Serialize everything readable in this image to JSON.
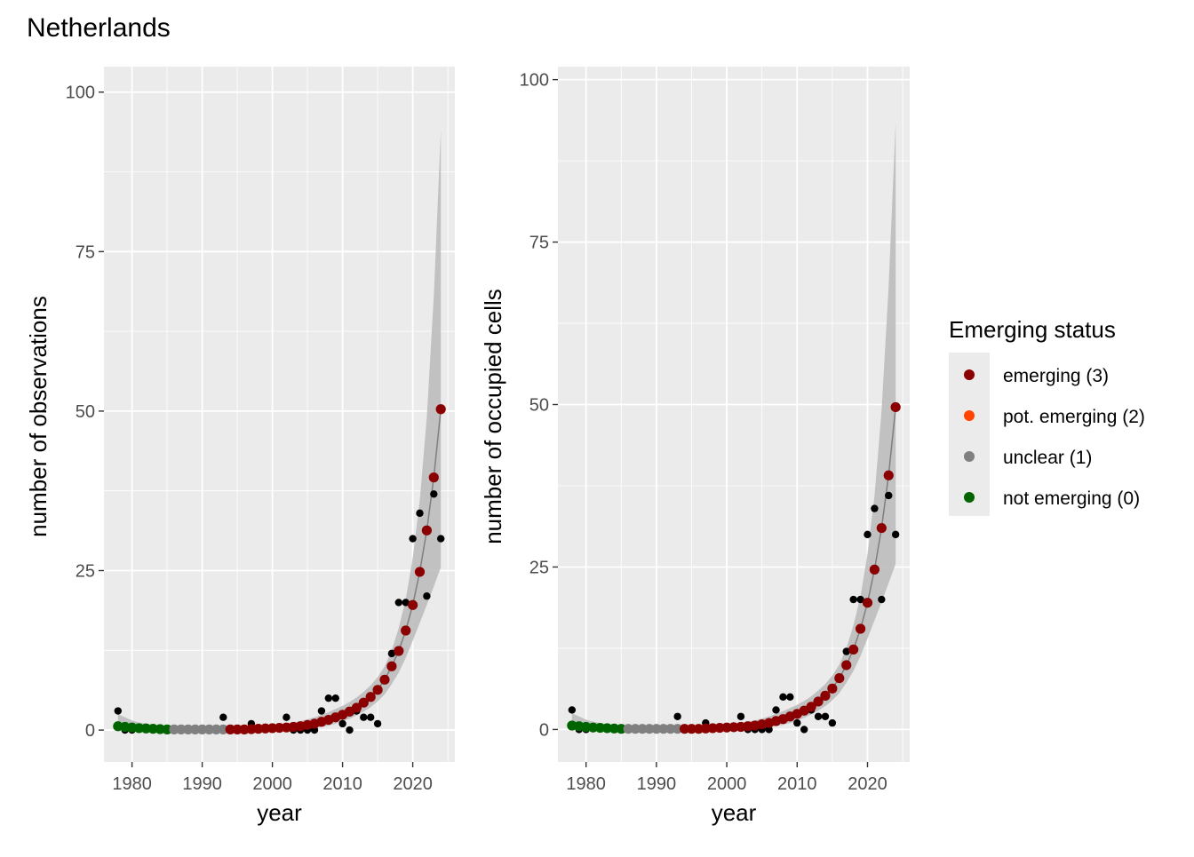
{
  "title": "Netherlands",
  "legend": {
    "title": "Emerging status",
    "position": "right",
    "items": [
      {
        "label": "emerging (3)",
        "color": "#8B0000"
      },
      {
        "label": "pot. emerging (2)",
        "color": "#FF4500"
      },
      {
        "label": "unclear (1)",
        "color": "#808080"
      },
      {
        "label": "not emerging (0)",
        "color": "#006400"
      }
    ]
  },
  "chart_data": [
    {
      "type": "scatter",
      "xlabel": "year",
      "ylabel": "number of observations",
      "xlim": [
        1976,
        2026
      ],
      "ylim": [
        -5,
        104
      ],
      "x_ticks": [
        1980,
        1990,
        2000,
        2010,
        2020
      ],
      "y_ticks": [
        0,
        25,
        50,
        75,
        100
      ],
      "grid": true,
      "observed": [
        [
          1978,
          3
        ],
        [
          1979,
          0
        ],
        [
          1980,
          0
        ],
        [
          1993,
          2
        ],
        [
          1996,
          0
        ],
        [
          1997,
          1
        ],
        [
          2002,
          2
        ],
        [
          2003,
          0
        ],
        [
          2004,
          0
        ],
        [
          2005,
          0
        ],
        [
          2006,
          0
        ],
        [
          2007,
          3
        ],
        [
          2008,
          5
        ],
        [
          2009,
          5
        ],
        [
          2010,
          1
        ],
        [
          2011,
          0
        ],
        [
          2012,
          3
        ],
        [
          2013,
          2
        ],
        [
          2014,
          2
        ],
        [
          2015,
          1
        ],
        [
          2017,
          12
        ],
        [
          2018,
          20
        ],
        [
          2019,
          20
        ],
        [
          2020,
          30
        ],
        [
          2021,
          34
        ],
        [
          2022,
          21
        ],
        [
          2023,
          37
        ],
        [
          2024,
          30
        ]
      ],
      "fit": {
        "years": [
          1978,
          1979,
          1980,
          1981,
          1982,
          1983,
          1984,
          1985,
          1986,
          1987,
          1988,
          1989,
          1990,
          1991,
          1992,
          1993,
          1994,
          1995,
          1996,
          1997,
          1998,
          1999,
          2000,
          2001,
          2002,
          2003,
          2004,
          2005,
          2006,
          2007,
          2008,
          2009,
          2010,
          2011,
          2012,
          2013,
          2014,
          2015,
          2016,
          2017,
          2018,
          2019,
          2020,
          2021,
          2022,
          2023,
          2024
        ],
        "values": [
          0.6,
          0.5,
          0.4,
          0.3,
          0.25,
          0.2,
          0.15,
          0.1,
          0.1,
          0.1,
          0.1,
          0.1,
          0.1,
          0.1,
          0.1,
          0.1,
          0.1,
          0.1,
          0.1,
          0.15,
          0.2,
          0.25,
          0.3,
          0.35,
          0.4,
          0.5,
          0.6,
          0.8,
          1.0,
          1.3,
          1.6,
          2.0,
          2.4,
          2.9,
          3.5,
          4.3,
          5.2,
          6.3,
          7.9,
          10.0,
          12.4,
          15.6,
          19.6,
          24.8,
          31.3,
          39.6,
          50.3
        ],
        "status": [
          "not emerging (0)",
          "not emerging (0)",
          "not emerging (0)",
          "not emerging (0)",
          "not emerging (0)",
          "not emerging (0)",
          "not emerging (0)",
          "not emerging (0)",
          "unclear (1)",
          "unclear (1)",
          "unclear (1)",
          "unclear (1)",
          "unclear (1)",
          "unclear (1)",
          "unclear (1)",
          "unclear (1)",
          "emerging (3)",
          "emerging (3)",
          "emerging (3)",
          "emerging (3)",
          "emerging (3)",
          "emerging (3)",
          "emerging (3)",
          "emerging (3)",
          "emerging (3)",
          "emerging (3)",
          "emerging (3)",
          "emerging (3)",
          "emerging (3)",
          "emerging (3)",
          "emerging (3)",
          "emerging (3)",
          "emerging (3)",
          "emerging (3)",
          "emerging (3)",
          "emerging (3)",
          "emerging (3)",
          "emerging (3)",
          "emerging (3)",
          "emerging (3)",
          "emerging (3)",
          "emerging (3)",
          "emerging (3)",
          "emerging (3)",
          "emerging (3)",
          "emerging (3)",
          "emerging (3)"
        ],
        "ci_lower": [
          0,
          0,
          0,
          0,
          0,
          0,
          0,
          0,
          0,
          0,
          0,
          0,
          0,
          0,
          0,
          0,
          0,
          0,
          0,
          0,
          0,
          0,
          0,
          0,
          0,
          0,
          0.1,
          0.2,
          0.3,
          0.5,
          0.7,
          1.0,
          1.4,
          1.8,
          2.3,
          2.9,
          3.6,
          4.5,
          5.6,
          7.2,
          9.0,
          11.3,
          14.0,
          16.8,
          19.6,
          22.5,
          25.5
        ],
        "ci_upper": [
          2.5,
          2.0,
          1.5,
          1.2,
          1.0,
          0.8,
          0.6,
          0.5,
          0.5,
          0.5,
          0.5,
          0.5,
          0.5,
          0.5,
          0.5,
          0.5,
          0.5,
          0.5,
          0.5,
          0.5,
          0.6,
          0.7,
          0.8,
          0.9,
          1.0,
          1.2,
          1.4,
          1.7,
          2.0,
          2.4,
          2.8,
          3.3,
          3.8,
          4.4,
          5.1,
          6.0,
          7.0,
          8.3,
          10.0,
          12.5,
          16.0,
          20.5,
          27.0,
          36.0,
          49.0,
          68.0,
          94.0
        ]
      }
    },
    {
      "type": "scatter",
      "xlabel": "year",
      "ylabel": "number of occupied cells",
      "xlim": [
        1976,
        2026
      ],
      "ylim": [
        -5,
        102
      ],
      "x_ticks": [
        1980,
        1990,
        2000,
        2010,
        2020
      ],
      "y_ticks": [
        0,
        25,
        50,
        75,
        100
      ],
      "grid": true,
      "observed": [
        [
          1978,
          3
        ],
        [
          1979,
          0
        ],
        [
          1980,
          0
        ],
        [
          1993,
          2
        ],
        [
          1996,
          0
        ],
        [
          1997,
          1
        ],
        [
          2002,
          2
        ],
        [
          2003,
          0
        ],
        [
          2004,
          0
        ],
        [
          2005,
          0
        ],
        [
          2006,
          0
        ],
        [
          2007,
          3
        ],
        [
          2008,
          5
        ],
        [
          2009,
          5
        ],
        [
          2010,
          1
        ],
        [
          2011,
          0
        ],
        [
          2012,
          3
        ],
        [
          2013,
          2
        ],
        [
          2014,
          2
        ],
        [
          2015,
          1
        ],
        [
          2017,
          12
        ],
        [
          2018,
          20
        ],
        [
          2019,
          20
        ],
        [
          2020,
          30
        ],
        [
          2021,
          34
        ],
        [
          2022,
          20
        ],
        [
          2023,
          36
        ],
        [
          2024,
          30
        ]
      ],
      "fit": {
        "years": [
          1978,
          1979,
          1980,
          1981,
          1982,
          1983,
          1984,
          1985,
          1986,
          1987,
          1988,
          1989,
          1990,
          1991,
          1992,
          1993,
          1994,
          1995,
          1996,
          1997,
          1998,
          1999,
          2000,
          2001,
          2002,
          2003,
          2004,
          2005,
          2006,
          2007,
          2008,
          2009,
          2010,
          2011,
          2012,
          2013,
          2014,
          2015,
          2016,
          2017,
          2018,
          2019,
          2020,
          2021,
          2022,
          2023,
          2024
        ],
        "values": [
          0.6,
          0.5,
          0.4,
          0.3,
          0.25,
          0.2,
          0.15,
          0.1,
          0.1,
          0.1,
          0.1,
          0.1,
          0.1,
          0.1,
          0.1,
          0.1,
          0.1,
          0.1,
          0.1,
          0.15,
          0.2,
          0.25,
          0.3,
          0.35,
          0.4,
          0.5,
          0.6,
          0.8,
          1.0,
          1.3,
          1.6,
          2.0,
          2.4,
          2.9,
          3.5,
          4.3,
          5.2,
          6.3,
          7.9,
          9.9,
          12.3,
          15.5,
          19.5,
          24.6,
          31.0,
          39.1,
          49.6
        ],
        "status": [
          "not emerging (0)",
          "not emerging (0)",
          "not emerging (0)",
          "not emerging (0)",
          "not emerging (0)",
          "not emerging (0)",
          "not emerging (0)",
          "not emerging (0)",
          "unclear (1)",
          "unclear (1)",
          "unclear (1)",
          "unclear (1)",
          "unclear (1)",
          "unclear (1)",
          "unclear (1)",
          "unclear (1)",
          "emerging (3)",
          "emerging (3)",
          "emerging (3)",
          "emerging (3)",
          "emerging (3)",
          "emerging (3)",
          "emerging (3)",
          "emerging (3)",
          "emerging (3)",
          "emerging (3)",
          "emerging (3)",
          "emerging (3)",
          "emerging (3)",
          "emerging (3)",
          "emerging (3)",
          "emerging (3)",
          "emerging (3)",
          "emerging (3)",
          "emerging (3)",
          "emerging (3)",
          "emerging (3)",
          "emerging (3)",
          "emerging (3)",
          "emerging (3)",
          "emerging (3)",
          "emerging (3)",
          "emerging (3)",
          "emerging (3)",
          "emerging (3)",
          "emerging (3)",
          "emerging (3)"
        ],
        "ci_lower": [
          0,
          0,
          0,
          0,
          0,
          0,
          0,
          0,
          0,
          0,
          0,
          0,
          0,
          0,
          0,
          0,
          0,
          0,
          0,
          0,
          0,
          0,
          0,
          0,
          0,
          0,
          0.1,
          0.2,
          0.3,
          0.5,
          0.7,
          1.0,
          1.4,
          1.8,
          2.3,
          2.9,
          3.6,
          4.5,
          5.6,
          7.2,
          9.0,
          11.3,
          14.0,
          16.8,
          19.6,
          22.5,
          25.5
        ],
        "ci_upper": [
          2.5,
          2.0,
          1.5,
          1.2,
          1.0,
          0.8,
          0.6,
          0.5,
          0.5,
          0.5,
          0.5,
          0.5,
          0.5,
          0.5,
          0.5,
          0.5,
          0.5,
          0.5,
          0.5,
          0.5,
          0.6,
          0.7,
          0.8,
          0.9,
          1.0,
          1.2,
          1.4,
          1.7,
          2.0,
          2.4,
          2.8,
          3.3,
          3.8,
          4.4,
          5.1,
          6.0,
          7.0,
          8.3,
          10.0,
          12.5,
          16.0,
          20.5,
          27.0,
          36.0,
          49.0,
          68.0,
          93.5
        ]
      }
    }
  ]
}
